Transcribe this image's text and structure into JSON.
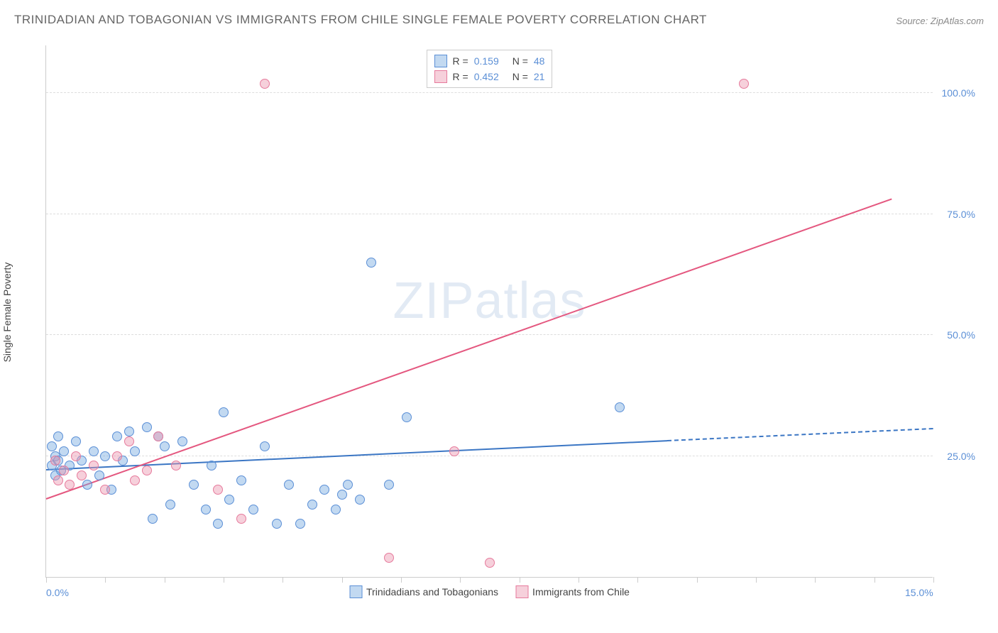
{
  "title": "TRINIDADIAN AND TOBAGONIAN VS IMMIGRANTS FROM CHILE SINGLE FEMALE POVERTY CORRELATION CHART",
  "source_label": "Source:",
  "source_value": "ZipAtlas.com",
  "y_axis_label": "Single Female Poverty",
  "watermark": "ZIPatlas",
  "chart": {
    "type": "scatter",
    "xlim": [
      0,
      15
    ],
    "ylim": [
      0,
      110
    ],
    "x_axis_labels": [
      {
        "pos": 0.0,
        "text": "0.0%"
      },
      {
        "pos": 15.0,
        "text": "15.0%"
      }
    ],
    "y_gridlines": [
      25,
      50,
      75,
      100
    ],
    "y_tick_labels": [
      {
        "pos": 25,
        "text": "25.0%"
      },
      {
        "pos": 50,
        "text": "50.0%"
      },
      {
        "pos": 75,
        "text": "75.0%"
      },
      {
        "pos": 100,
        "text": "100.0%"
      }
    ],
    "x_ticks": [
      0,
      1,
      2,
      3,
      4,
      5,
      6,
      7,
      8,
      9,
      10,
      11,
      12,
      13,
      14,
      15
    ],
    "background_color": "#ffffff",
    "grid_color": "#dddddd",
    "axis_color": "#cccccc",
    "point_radius": 7,
    "series": [
      {
        "name": "Trinidadians and Tobagonians",
        "fill": "rgba(120, 170, 225, 0.45)",
        "stroke": "#5b8fd6",
        "R": "0.159",
        "N": "48",
        "trend": {
          "x1": 0,
          "y1": 22,
          "x2": 10.5,
          "y2": 28,
          "xd": 15,
          "yd": 30.5,
          "color": "#3b76c4"
        },
        "points": [
          [
            0.1,
            23
          ],
          [
            0.1,
            27
          ],
          [
            0.15,
            25
          ],
          [
            0.15,
            21
          ],
          [
            0.2,
            24
          ],
          [
            0.2,
            29
          ],
          [
            0.25,
            22
          ],
          [
            0.3,
            26
          ],
          [
            0.4,
            23
          ],
          [
            0.5,
            28
          ],
          [
            0.6,
            24
          ],
          [
            0.7,
            19
          ],
          [
            0.8,
            26
          ],
          [
            0.9,
            21
          ],
          [
            1.0,
            25
          ],
          [
            1.1,
            18
          ],
          [
            1.2,
            29
          ],
          [
            1.3,
            24
          ],
          [
            1.4,
            30
          ],
          [
            1.5,
            26
          ],
          [
            1.7,
            31
          ],
          [
            1.8,
            12
          ],
          [
            1.9,
            29
          ],
          [
            2.0,
            27
          ],
          [
            2.1,
            15
          ],
          [
            2.3,
            28
          ],
          [
            2.5,
            19
          ],
          [
            2.7,
            14
          ],
          [
            2.8,
            23
          ],
          [
            2.9,
            11
          ],
          [
            3.0,
            34
          ],
          [
            3.1,
            16
          ],
          [
            3.3,
            20
          ],
          [
            3.5,
            14
          ],
          [
            3.7,
            27
          ],
          [
            3.9,
            11
          ],
          [
            4.1,
            19
          ],
          [
            4.3,
            11
          ],
          [
            4.5,
            15
          ],
          [
            4.7,
            18
          ],
          [
            4.9,
            14
          ],
          [
            5.0,
            17
          ],
          [
            5.1,
            19
          ],
          [
            5.3,
            16
          ],
          [
            5.5,
            65
          ],
          [
            5.8,
            19
          ],
          [
            6.1,
            33
          ],
          [
            9.7,
            35
          ]
        ]
      },
      {
        "name": "Immigrants from Chile",
        "fill": "rgba(235, 150, 175, 0.45)",
        "stroke": "#e67a9c",
        "R": "0.452",
        "N": "21",
        "trend": {
          "x1": 0,
          "y1": 16,
          "x2": 14.3,
          "y2": 78,
          "xd": null,
          "yd": null,
          "color": "#e4577f"
        },
        "points": [
          [
            0.15,
            24
          ],
          [
            0.2,
            20
          ],
          [
            0.3,
            22
          ],
          [
            0.4,
            19
          ],
          [
            0.5,
            25
          ],
          [
            0.6,
            21
          ],
          [
            0.8,
            23
          ],
          [
            1.0,
            18
          ],
          [
            1.2,
            25
          ],
          [
            1.4,
            28
          ],
          [
            1.5,
            20
          ],
          [
            1.7,
            22
          ],
          [
            1.9,
            29
          ],
          [
            2.2,
            23
          ],
          [
            2.9,
            18
          ],
          [
            3.3,
            12
          ],
          [
            3.7,
            102
          ],
          [
            5.8,
            4
          ],
          [
            6.9,
            26
          ],
          [
            7.5,
            3
          ],
          [
            11.8,
            102
          ]
        ]
      }
    ],
    "legend_top": {
      "border_color": "#cccccc",
      "r_label": "R =",
      "n_label": "N ="
    },
    "legend_bottom": [
      {
        "label": "Trinidadians and Tobagonians",
        "fill": "rgba(120, 170, 225, 0.45)",
        "stroke": "#5b8fd6"
      },
      {
        "label": "Immigrants from Chile",
        "fill": "rgba(235, 150, 175, 0.45)",
        "stroke": "#e67a9c"
      }
    ]
  }
}
